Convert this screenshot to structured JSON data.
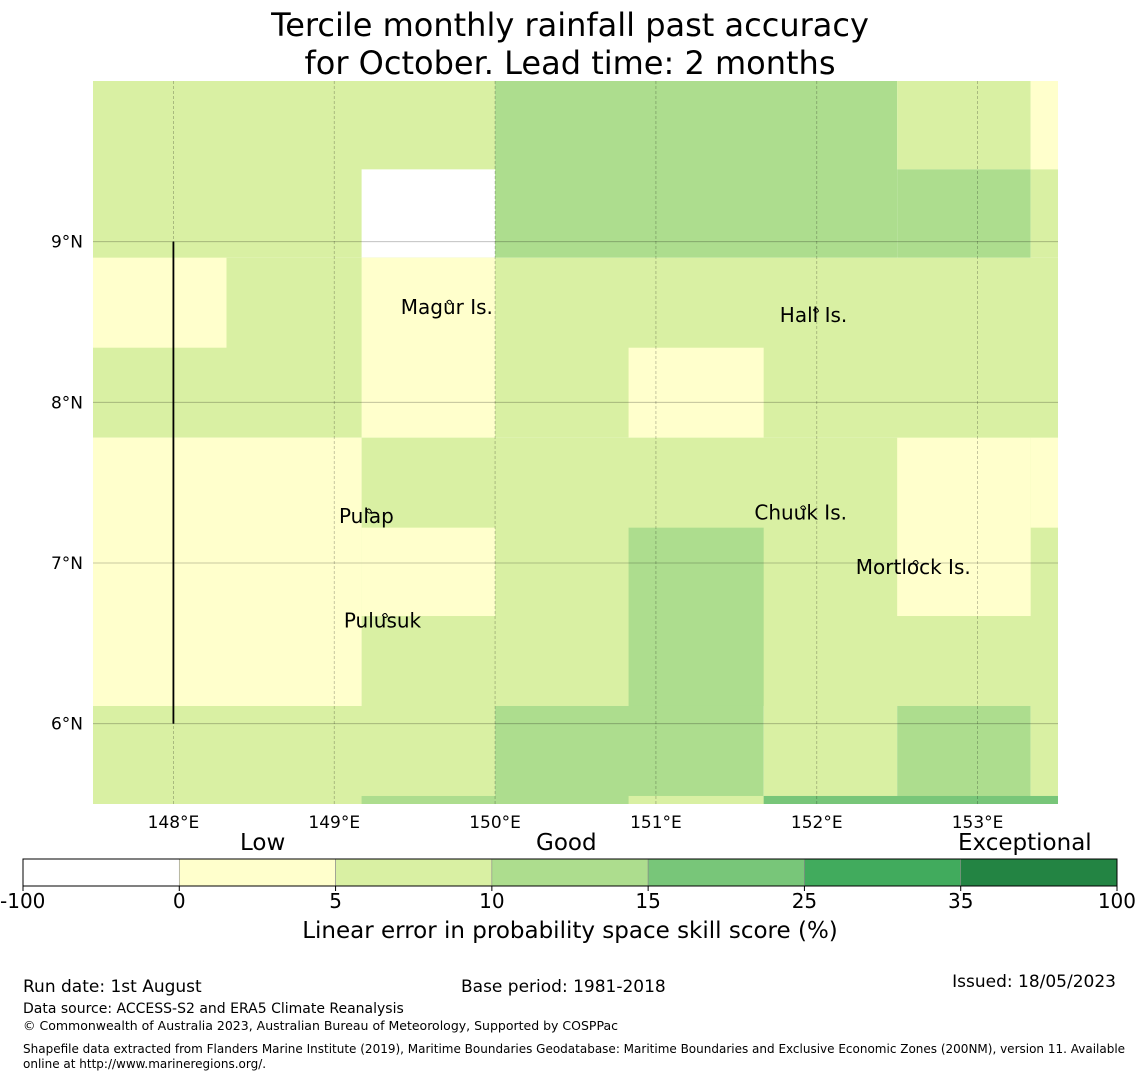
{
  "title": {
    "line1": "Tercile monthly rainfall past accuracy",
    "line2": "for October. Lead time: 2 months"
  },
  "chart_data": {
    "type": "heatmap",
    "x_ticks": [
      148,
      149,
      150,
      151,
      152,
      153
    ],
    "x_tick_labels": [
      "148°E",
      "149°E",
      "150°E",
      "151°E",
      "152°E",
      "153°E"
    ],
    "y_ticks": [
      6,
      7,
      8,
      9
    ],
    "y_tick_labels": [
      "6°N",
      "7°N",
      "8°N",
      "9°N"
    ],
    "xlim": [
      147.5,
      153.5
    ],
    "ylim": [
      5.5,
      10.0
    ],
    "grid": true,
    "cells": [
      {
        "lon": [
          147.5,
          150.0
        ],
        "lat": [
          8.9,
          10.0
        ],
        "value": 7
      },
      {
        "lon": [
          149.17,
          150.0
        ],
        "lat": [
          8.9,
          9.45
        ],
        "value": null
      },
      {
        "lon": [
          150.0,
          152.5
        ],
        "lat": [
          8.9,
          10.0
        ],
        "value": 12
      },
      {
        "lon": [
          152.5,
          153.33
        ],
        "lat": [
          9.45,
          10.0
        ],
        "value": 7
      },
      {
        "lon": [
          152.5,
          153.33
        ],
        "lat": [
          8.9,
          9.45
        ],
        "value": 12
      },
      {
        "lon": [
          153.33,
          153.5
        ],
        "lat": [
          9.45,
          10.0
        ],
        "value": 3
      },
      {
        "lon": [
          153.33,
          153.5
        ],
        "lat": [
          8.9,
          9.45
        ],
        "value": 7
      },
      {
        "lon": [
          147.5,
          153.5
        ],
        "lat": [
          7.78,
          8.9
        ],
        "value": 7
      },
      {
        "lon": [
          147.5,
          148.33
        ],
        "lat": [
          8.34,
          8.9
        ],
        "value": 3
      },
      {
        "lon": [
          149.17,
          150.0
        ],
        "lat": [
          7.78,
          8.9
        ],
        "value": 3
      },
      {
        "lon": [
          150.83,
          151.67
        ],
        "lat": [
          7.78,
          8.34
        ],
        "value": 3
      },
      {
        "lon": [
          147.5,
          149.17
        ],
        "lat": [
          6.11,
          7.78
        ],
        "value": 3
      },
      {
        "lon": [
          149.17,
          153.5
        ],
        "lat": [
          6.11,
          7.78
        ],
        "value": 7
      },
      {
        "lon": [
          149.17,
          150.0
        ],
        "lat": [
          6.67,
          7.22
        ],
        "value": 3
      },
      {
        "lon": [
          150.83,
          151.67
        ],
        "lat": [
          6.11,
          7.22
        ],
        "value": 12
      },
      {
        "lon": [
          152.5,
          153.33
        ],
        "lat": [
          6.67,
          7.78
        ],
        "value": 3
      },
      {
        "lon": [
          153.33,
          153.5
        ],
        "lat": [
          7.22,
          7.78
        ],
        "value": 3
      },
      {
        "lon": [
          147.5,
          150.0
        ],
        "lat": [
          5.5,
          6.11
        ],
        "value": 7
      },
      {
        "lon": [
          150.0,
          151.67
        ],
        "lat": [
          5.5,
          6.11
        ],
        "value": 12
      },
      {
        "lon": [
          151.67,
          152.5
        ],
        "lat": [
          5.5,
          6.11
        ],
        "value": 7
      },
      {
        "lon": [
          152.5,
          153.33
        ],
        "lat": [
          5.5,
          6.11
        ],
        "value": 12
      },
      {
        "lon": [
          153.33,
          153.5
        ],
        "lat": [
          5.5,
          6.11
        ],
        "value": 7
      },
      {
        "lon": [
          149.17,
          150.83
        ],
        "lat": [
          5.5,
          5.55
        ],
        "value": 12
      },
      {
        "lon": [
          150.83,
          151.67
        ],
        "lat": [
          5.5,
          5.55
        ],
        "value": 7
      },
      {
        "lon": [
          151.67,
          153.5
        ],
        "lat": [
          5.5,
          5.55
        ],
        "value": 20
      }
    ],
    "islands": [
      {
        "name": "Magur Is.",
        "lon": 149.7,
        "lat": 8.55
      },
      {
        "name": "Hall Is.",
        "lon": 151.98,
        "lat": 8.5
      },
      {
        "name": "Pulap",
        "lon": 149.2,
        "lat": 7.25
      },
      {
        "name": "Chuuk Is.",
        "lon": 151.9,
        "lat": 7.27
      },
      {
        "name": "Mortlock Is.",
        "lon": 152.6,
        "lat": 6.93
      },
      {
        "name": "Pulusuk",
        "lon": 149.3,
        "lat": 6.6
      }
    ],
    "boundary_line": {
      "lon": 148.0,
      "lat": [
        6.0,
        9.0
      ]
    },
    "colorbar": {
      "ticks": [
        "-100",
        "0",
        "5",
        "10",
        "15",
        "25",
        "35",
        "100"
      ],
      "colors": [
        "#ffffff",
        "#ffffcc",
        "#d9f0a3",
        "#addd8e",
        "#78c679",
        "#41ab5d",
        "#238443"
      ],
      "categories": [
        "Low",
        "Good",
        "Exceptional"
      ],
      "label": "Linear error in probability space skill score (%)"
    }
  },
  "footer": {
    "run_date": "Run date: 1st August",
    "base_period": "Base period: 1981-2018",
    "issued": "Issued: 18/05/2023",
    "data_source": "Data source: ACCESS-S2 and ERA5 Climate Reanalysis",
    "copyright": "© Commonwealth of Australia 2023, Australian Bureau of Meteorology, Supported by COSPPac",
    "shapefile_line1": "Shapefile data extracted from Flanders Marine Institute (2019), Maritime Boundaries Geodatabase: Maritime Boundaries and Exclusive Economic Zones (200NM), version 11. Available",
    "shapefile_line2": "online at http://www.marineregions.org/."
  }
}
